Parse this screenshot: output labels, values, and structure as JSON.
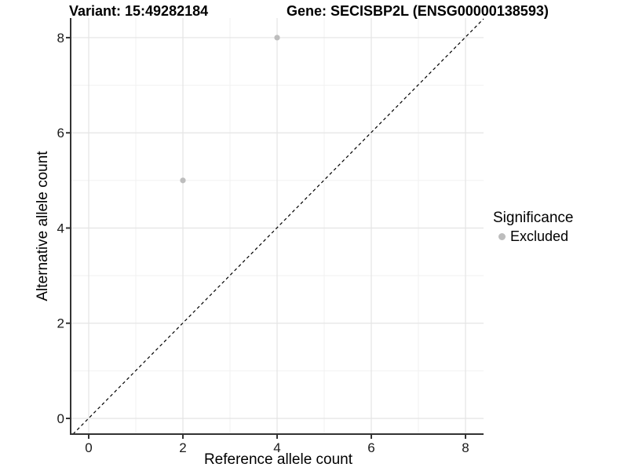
{
  "chart_data": {
    "type": "scatter",
    "title_left": "Variant: 15:49282184",
    "title_right": "Gene: SECISBP2L (ENSG00000138593)",
    "xlabel": "Reference allele count",
    "ylabel": "Alternative allele count",
    "xlim": [
      -0.4,
      8.4
    ],
    "ylim": [
      -0.4,
      8.4
    ],
    "xticks": [
      0,
      2,
      4,
      6,
      8
    ],
    "yticks": [
      0,
      2,
      4,
      6,
      8
    ],
    "x_minor_gridlines": [
      1,
      3,
      5,
      7
    ],
    "y_minor_gridlines": [
      1,
      3,
      5,
      7
    ],
    "grid": "major+minor",
    "identity_line": {
      "type": "abline",
      "slope": 1,
      "intercept": 0,
      "style": "dashed",
      "color": "#000000"
    },
    "series": [
      {
        "name": "Excluded",
        "color": "#bdbdbd",
        "points": [
          {
            "x": 2,
            "y": 5
          },
          {
            "x": 4,
            "y": 8
          }
        ]
      }
    ],
    "legend": {
      "title": "Significance",
      "position": "right",
      "items": [
        {
          "label": "Excluded",
          "color": "#bdbdbd",
          "marker": "circle"
        }
      ]
    },
    "colors": {
      "background": "#ffffff",
      "grid_major": "#e4e4e4",
      "grid_minor": "#f1f1f1",
      "axis": "#333333",
      "tick_text": "#1a1a1a",
      "point": "#bdbdbd"
    }
  }
}
